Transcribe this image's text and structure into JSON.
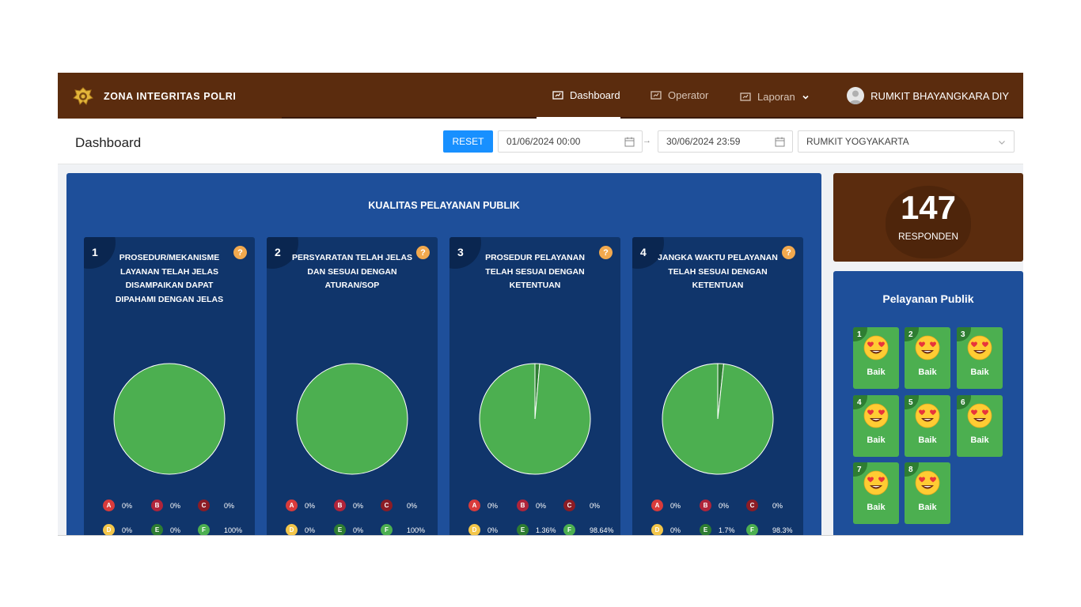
{
  "brand": {
    "name": "ZONA INTEGRITAS POLRI"
  },
  "nav": {
    "dashboard": "Dashboard",
    "operator": "Operator",
    "laporan": "Laporan",
    "user": "RUMKIT BHAYANGKARA DIY"
  },
  "toolbar": {
    "page_title": "Dashboard",
    "reset_label": "RESET",
    "start_date": "01/06/2024 00:00",
    "end_date": "30/06/2024 23:59",
    "arrow": "→",
    "location": "RUMKIT YOGYAKARTA"
  },
  "quality": {
    "title": "KUALITAS PELAYANAN PUBLIK",
    "cards": [
      {
        "num": "1",
        "lines": [
          "PROSEDUR/MEKANISME",
          "LAYANAN TELAH JELAS",
          "DISAMPAIKAN DAPAT",
          "DIPAHAMI DENGAN JELAS"
        ],
        "legend": {
          "A": "0%",
          "B": "0%",
          "C": "0%",
          "D": "0%",
          "E": "0%",
          "F": "100%"
        }
      },
      {
        "num": "2",
        "lines": [
          "PERSYARATAN TELAH JELAS",
          "DAN SESUAI DENGAN",
          "ATURAN/SOP"
        ],
        "legend": {
          "A": "0%",
          "B": "0%",
          "C": "0%",
          "D": "0%",
          "E": "0%",
          "F": "100%"
        }
      },
      {
        "num": "3",
        "lines": [
          "PROSEDUR PELAYANAN",
          "TELAH SESUAI DENGAN",
          "KETENTUAN"
        ],
        "legend": {
          "A": "0%",
          "B": "0%",
          "C": "0%",
          "D": "0%",
          "E": "1.36%",
          "F": "98.64%"
        }
      },
      {
        "num": "4",
        "lines": [
          "JANGKA WAKTU PELAYANAN",
          "TELAH SESUAI DENGAN",
          "KETENTUAN"
        ],
        "legend": {
          "A": "0%",
          "B": "0%",
          "C": "0%",
          "D": "0%",
          "E": "1.7%",
          "F": "98.3%"
        }
      }
    ],
    "legend_letters": [
      "A",
      "B",
      "C",
      "D",
      "E",
      "F"
    ],
    "legend_colors": {
      "A": "#d93b3b",
      "B": "#b0243a",
      "C": "#8c1c25",
      "D": "#f3c64a",
      "E": "#2e7d32",
      "F": "#4caf50"
    }
  },
  "respondents": {
    "count": "147",
    "label": "RESPONDEN"
  },
  "services": {
    "title": "Pelayanan Publik",
    "tiles": [
      {
        "num": "1",
        "label": "Baik"
      },
      {
        "num": "2",
        "label": "Baik"
      },
      {
        "num": "3",
        "label": "Baik"
      },
      {
        "num": "4",
        "label": "Baik"
      },
      {
        "num": "5",
        "label": "Baik"
      },
      {
        "num": "6",
        "label": "Baik"
      },
      {
        "num": "7",
        "label": "Baik"
      },
      {
        "num": "8",
        "label": "Baik"
      }
    ]
  },
  "colors": {
    "nav_brown": "#5b2c0e",
    "panel_blue": "#1e4f9a",
    "card_navy": "#10356b",
    "accent_blue": "#1890ff",
    "pie_green": "#4caf50"
  },
  "icons": {
    "brand": "police-emblem-icon",
    "nav": "dashboard-icon",
    "user": "user-avatar-icon",
    "calendar": "calendar-icon",
    "tile": "heart-eyes-emoji-icon"
  }
}
